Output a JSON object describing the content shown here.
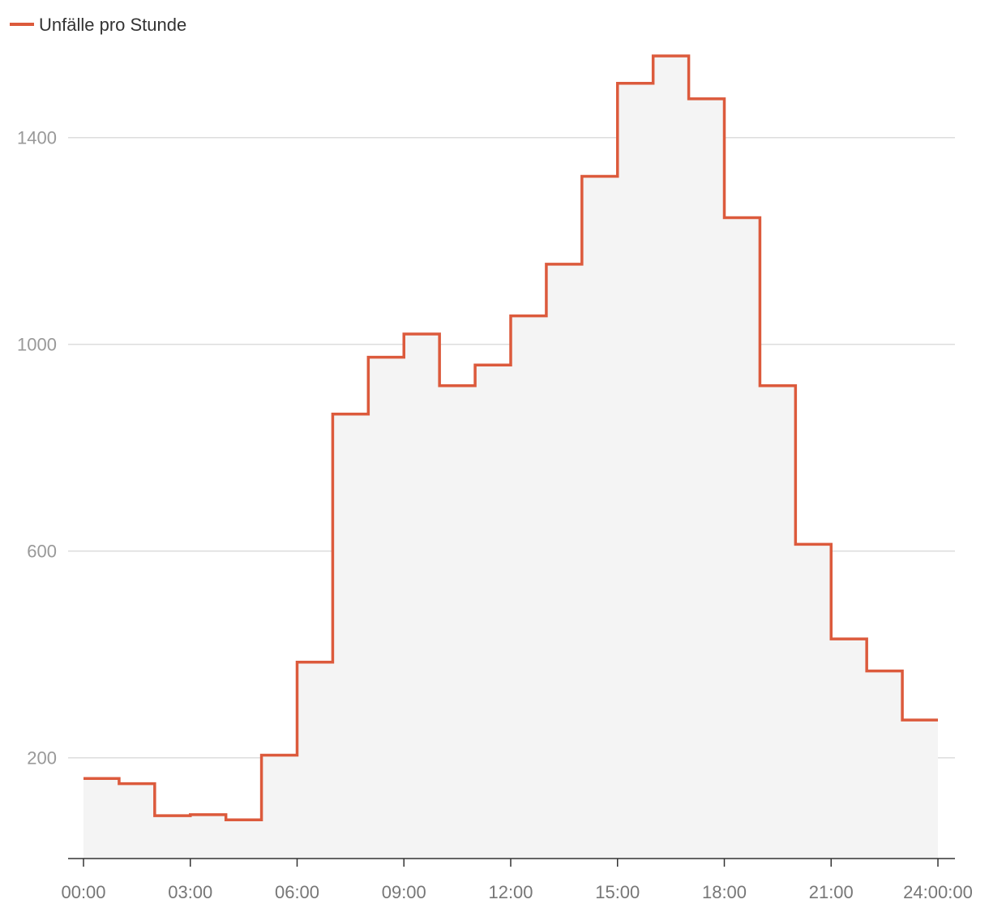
{
  "colors": {
    "line": "#dc5a3c",
    "area": "#f4f4f4",
    "grid": "#dddddd",
    "axis": "#333333",
    "y_tick_text": "#999999",
    "x_tick_text": "#777777",
    "legend_text": "#333333"
  },
  "chart_data": {
    "type": "line",
    "step": "post",
    "area_fill": true,
    "legend": {
      "position": "top-left",
      "entries": [
        "Unfälle pro Stunde"
      ]
    },
    "series": [
      {
        "name": "Unfälle pro Stunde",
        "x": [
          "00:00",
          "01:00",
          "02:00",
          "03:00",
          "04:00",
          "05:00",
          "06:00",
          "07:00",
          "08:00",
          "09:00",
          "10:00",
          "11:00",
          "12:00",
          "13:00",
          "14:00",
          "15:00",
          "16:00",
          "17:00",
          "18:00",
          "19:00",
          "20:00",
          "21:00",
          "22:00",
          "23:00",
          "24:00"
        ],
        "values": [
          160,
          150,
          88,
          90,
          80,
          205,
          385,
          865,
          975,
          1020,
          920,
          960,
          1055,
          1155,
          1325,
          1505,
          1558,
          1475,
          1245,
          920,
          613,
          430,
          368,
          273,
          273
        ]
      }
    ],
    "x_ticks": [
      "00:00",
      "03:00",
      "06:00",
      "09:00",
      "12:00",
      "15:00",
      "18:00",
      "21:00",
      "24:00:00"
    ],
    "y_ticks": [
      200,
      600,
      1000,
      1400
    ],
    "ylim": [
      5,
      1625
    ],
    "xlim_hours": [
      0,
      24
    ],
    "grid": true,
    "title": "",
    "xlabel": "",
    "ylabel": ""
  }
}
